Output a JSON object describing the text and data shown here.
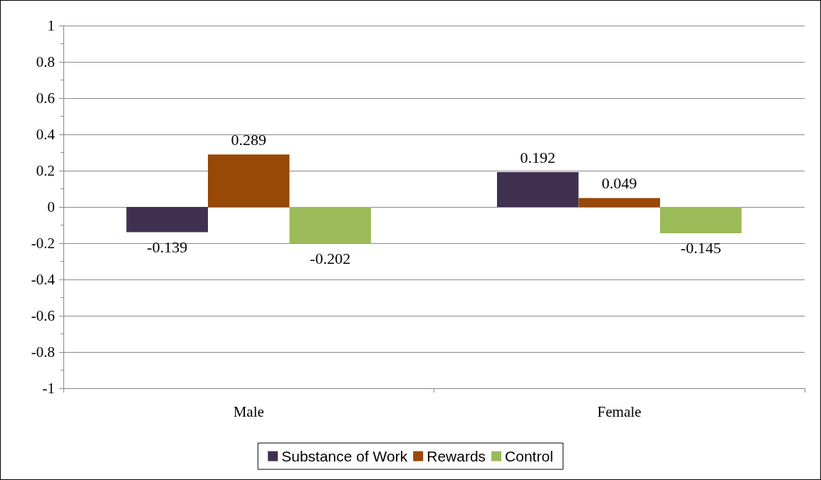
{
  "chart_data": {
    "type": "bar",
    "categories": [
      "Male",
      "Female"
    ],
    "series": [
      {
        "name": "Substance of Work",
        "color": "#403151",
        "values": [
          -0.139,
          0.192
        ]
      },
      {
        "name": "Rewards",
        "color": "#984807",
        "values": [
          0.289,
          0.049
        ]
      },
      {
        "name": "Control",
        "color": "#9bbb59",
        "values": [
          -0.202,
          -0.145
        ]
      }
    ],
    "ylim": [
      -1,
      1
    ],
    "yticks": [
      -1,
      -0.8,
      -0.6,
      -0.4,
      -0.2,
      0,
      0.2,
      0.4,
      0.6,
      0.8,
      1
    ],
    "grid": "y",
    "legend": "bottom",
    "data_labels": true
  }
}
